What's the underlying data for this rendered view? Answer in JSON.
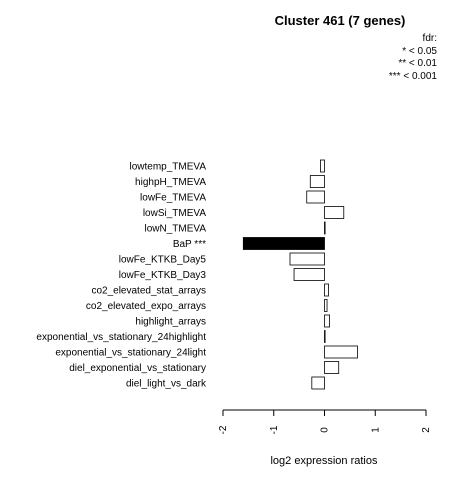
{
  "chart_data": {
    "type": "bar",
    "orientation": "horizontal",
    "title": "Cluster 461 (7 genes)",
    "xlabel": "log2 expression ratios",
    "ylabel": "",
    "xlim": [
      -2,
      2
    ],
    "xticks": [
      "-2",
      "-1",
      "0",
      "1",
      "2"
    ],
    "legend": {
      "title": "fdr:",
      "entries": [
        "* < 0.05",
        "** < 0.01",
        "*** < 0.001"
      ],
      "placement": "top-right"
    },
    "categories": [
      "lowtemp_TMEVA",
      "highpH_TMEVA",
      "lowFe_TMEVA",
      "lowSi_TMEVA",
      "lowN_TMEVA",
      "BaP ***",
      "lowFe_KTKB_Day5",
      "lowFe_KTKB_Day3",
      "co2_elevated_stat_arrays",
      "co2_elevated_expo_arrays",
      "highlight_arrays",
      "exponential_vs_stationary_24highlight",
      "exponential_vs_stationary_24light",
      "diel_exponential_vs_stationary",
      "diel_light_vs_dark"
    ],
    "values": [
      -0.08,
      -0.28,
      -0.35,
      0.38,
      0.0,
      -1.6,
      -0.68,
      -0.6,
      0.08,
      0.05,
      0.1,
      0.0,
      0.65,
      0.28,
      -0.25
    ],
    "highlighted": [
      false,
      false,
      false,
      false,
      false,
      true,
      false,
      false,
      false,
      false,
      false,
      false,
      false,
      false,
      false
    ],
    "colors": {
      "bar": "#ffffff",
      "highlight": "#000000",
      "stroke": "#000000"
    }
  }
}
